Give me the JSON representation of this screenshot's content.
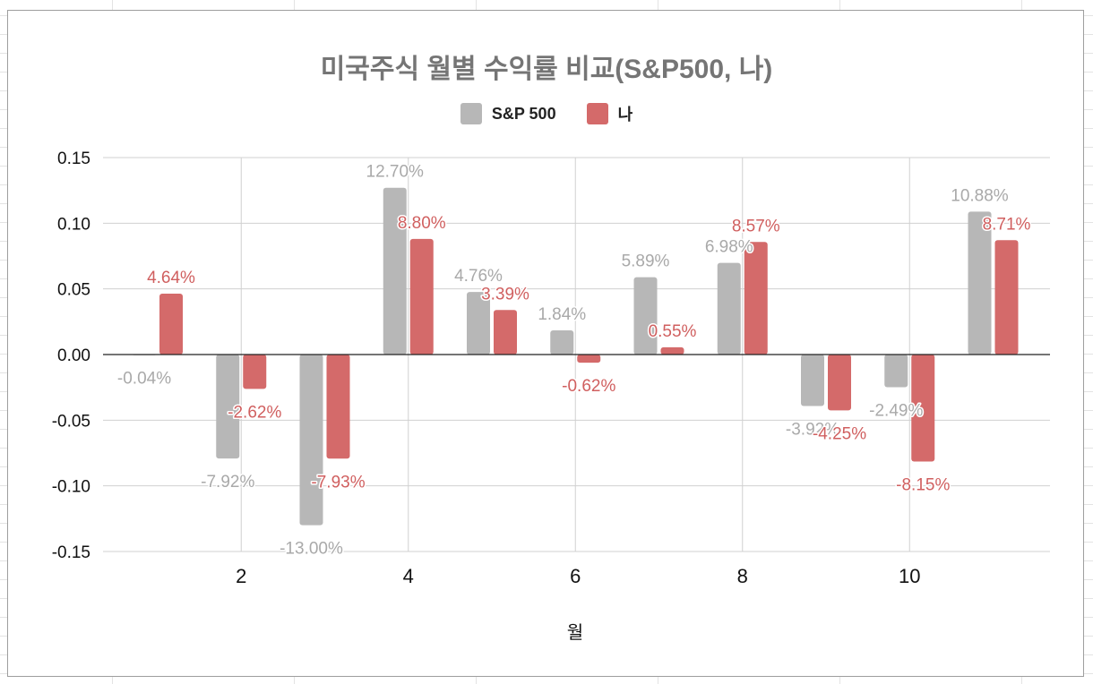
{
  "chart_data": {
    "type": "bar",
    "title": "미국주식 월별 수익률 비교(S&P500, 나)",
    "xlabel": "월",
    "ylabel": "",
    "ylim": [
      -0.15,
      0.15
    ],
    "yticks": [
      0.15,
      0.1,
      0.05,
      0.0,
      -0.05,
      -0.1,
      -0.15
    ],
    "ytick_labels": [
      "0.15",
      "0.10",
      "0.05",
      "0.00",
      "-0.05",
      "-0.10",
      "-0.15"
    ],
    "categories": [
      1,
      2,
      3,
      4,
      5,
      6,
      7,
      8,
      9,
      10,
      11
    ],
    "xticks": [
      2,
      4,
      6,
      8,
      10
    ],
    "xtick_labels": [
      "2",
      "4",
      "6",
      "8",
      "10"
    ],
    "grid": true,
    "legend_position": "top-center",
    "series": [
      {
        "name": "S&P 500",
        "color": "#b7b7b7",
        "values": [
          -0.0004,
          -0.0792,
          -0.13,
          0.127,
          0.0476,
          0.0184,
          0.0589,
          0.0698,
          -0.0392,
          -0.0249,
          0.1088
        ],
        "labels": [
          "-0.04%",
          "-7.92%",
          "-13.00%",
          "12.70%",
          "4.76%",
          "1.84%",
          "5.89%",
          "6.98%",
          "-3.92%",
          "-2.49%",
          "10.88%"
        ]
      },
      {
        "name": "나",
        "color": "#d46a6a",
        "values": [
          0.0464,
          -0.0262,
          -0.0793,
          0.088,
          0.0339,
          -0.0062,
          0.0055,
          0.0857,
          -0.0425,
          -0.0815,
          0.0871
        ],
        "labels": [
          "4.64%",
          "-2.62%",
          "-7.93%",
          "8.80%",
          "3.39%",
          "-0.62%",
          "0.55%",
          "8.57%",
          "-4.25%",
          "-8.15%",
          "8.71%"
        ]
      }
    ]
  }
}
